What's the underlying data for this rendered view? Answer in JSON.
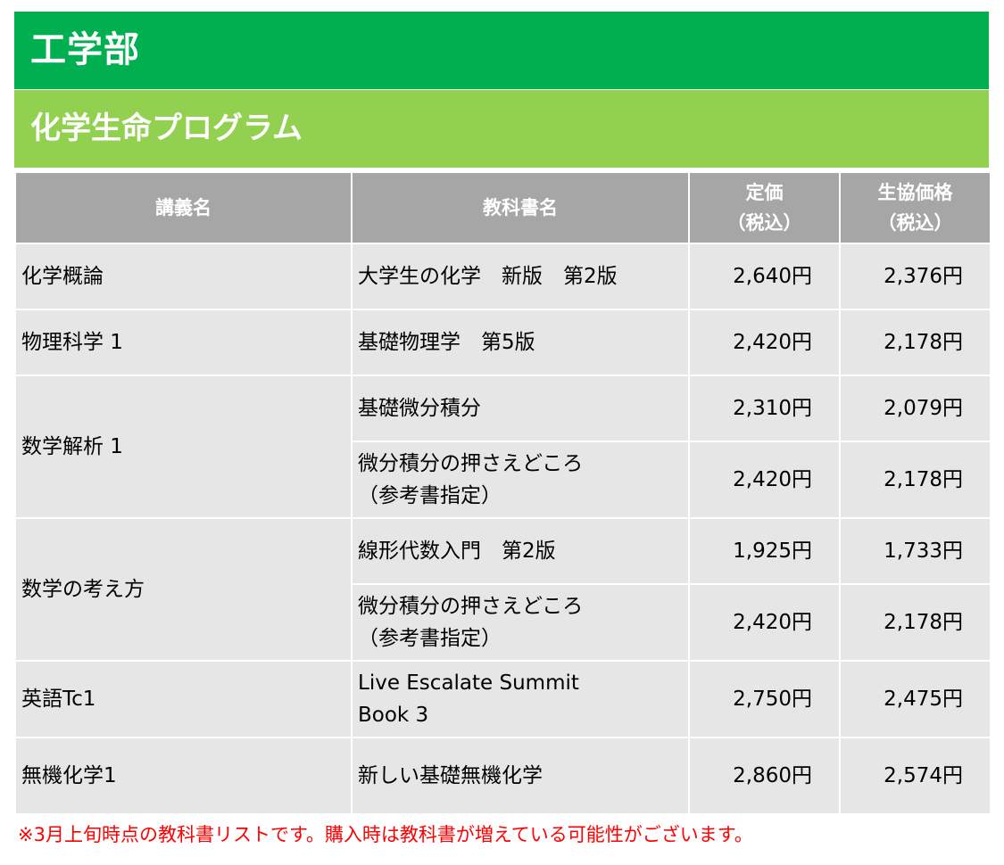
{
  "header": {
    "department": "工学部",
    "program": "化学生命プログラム"
  },
  "table": {
    "columns": {
      "course": "講義名",
      "textbook": "教科書名",
      "list_price": [
        "定価",
        "（税込）"
      ],
      "coop_price": [
        "生協価格",
        "（税込）"
      ]
    },
    "groups": [
      {
        "course": "化学概論",
        "books": [
          {
            "title": [
              "大学生の化学　新版　第2版"
            ],
            "list_price": "2,640円",
            "coop_price": "2,376円"
          }
        ]
      },
      {
        "course": "物理科学 1",
        "books": [
          {
            "title": [
              "基礎物理学　第5版"
            ],
            "list_price": "2,420円",
            "coop_price": "2,178円"
          }
        ]
      },
      {
        "course": "数学解析 1",
        "books": [
          {
            "title": [
              "基礎微分積分"
            ],
            "list_price": "2,310円",
            "coop_price": "2,079円"
          },
          {
            "title": [
              "微分積分の押さえどころ",
              "（参考書指定）"
            ],
            "list_price": "2,420円",
            "coop_price": "2,178円"
          }
        ]
      },
      {
        "course": "数学の考え方",
        "books": [
          {
            "title": [
              "線形代数入門　第2版"
            ],
            "list_price": "1,925円",
            "coop_price": "1,733円"
          },
          {
            "title": [
              "微分積分の押さえどころ",
              "（参考書指定）"
            ],
            "list_price": "2,420円",
            "coop_price": "2,178円"
          }
        ]
      },
      {
        "course": "英語Tc1",
        "books": [
          {
            "title": [
              "Live Escalate Summit",
              "Book 3"
            ],
            "list_price": "2,750円",
            "coop_price": "2,475円"
          }
        ]
      },
      {
        "course": "無機化学1",
        "books": [
          {
            "title": [
              "新しい基礎無機化学"
            ],
            "list_price": "2,860円",
            "coop_price": "2,574円"
          }
        ]
      }
    ]
  },
  "footnote": "※3月上旬時点の教科書リストです。購入時は教科書が増えている可能性がございます。",
  "colors": {
    "department_band": "#00b050",
    "program_band": "#92d050",
    "header_row": "#a6a6a6",
    "body_cell": "#e6e6e6",
    "footnote_text": "#ff0000"
  }
}
